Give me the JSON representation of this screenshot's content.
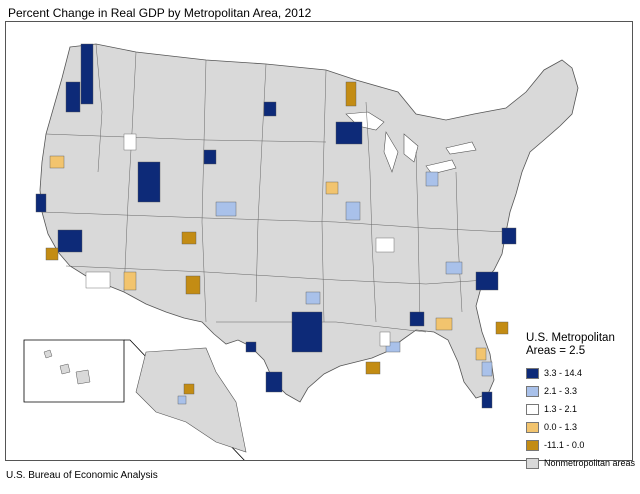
{
  "title": "Percent Change in Real GDP by Metropolitan Area, 2012",
  "source": "U.S. Bureau of Economic Analysis",
  "legend": {
    "title": "U.S. Metropolitan Areas = 2.5",
    "items": [
      {
        "label": "3.3 - 14.4",
        "color": "#0d2a78"
      },
      {
        "label": "2.1 - 3.3",
        "color": "#a9c1ea"
      },
      {
        "label": "1.3 - 2.1",
        "color": "#ffffff"
      },
      {
        "label": "0.0 - 1.3",
        "color": "#f2c46e"
      },
      {
        "label": "-11.1 - 0.0",
        "color": "#c38c14"
      },
      {
        "label": "Nonmetropolitan areas",
        "color": "#d9d9d9"
      }
    ]
  }
}
